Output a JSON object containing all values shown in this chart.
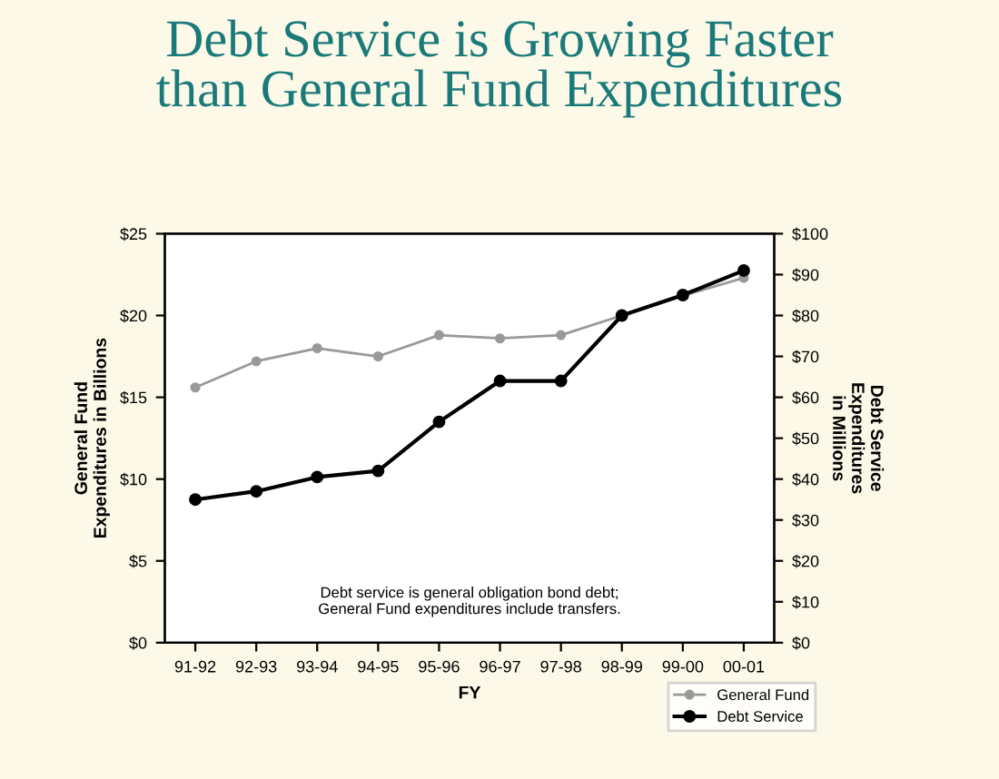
{
  "chart_data": {
    "type": "line",
    "title": "Debt Service is Growing Faster\nthan General Fund Expenditures",
    "categories": [
      "91-92",
      "92-93",
      "93-94",
      "94-95",
      "95-96",
      "96-97",
      "97-98",
      "98-99",
      "99-00",
      "00-01"
    ],
    "xlabel": "FY",
    "ylabel": "General Fund\nExpenditures in Billions",
    "y2label": "Debt Service\nExpenditures\nin Millions",
    "series": [
      {
        "name": "General Fund",
        "color": "#999999",
        "values": [
          15.6,
          17.2,
          18.0,
          17.5,
          18.8,
          18.6,
          18.8,
          20.0,
          21.2,
          22.3
        ]
      },
      {
        "name": "Debt Service",
        "color": "#000000",
        "axis": "y2",
        "values": [
          35,
          37,
          40.5,
          42,
          54,
          64,
          64,
          80,
          85,
          91
        ]
      }
    ],
    "ylim": [
      0,
      25
    ],
    "yticks": [
      {
        "value": 0,
        "label": "$0"
      },
      {
        "value": 5,
        "label": "$5"
      },
      {
        "value": 10,
        "label": "$10"
      },
      {
        "value": 15,
        "label": "$15"
      },
      {
        "value": 20,
        "label": "$20"
      },
      {
        "value": 25,
        "label": "$25"
      }
    ],
    "y2lim": [
      0,
      100
    ],
    "y2ticks": [
      {
        "value": 0,
        "label": "$0"
      },
      {
        "value": 10,
        "label": "$10"
      },
      {
        "value": 20,
        "label": "$20"
      },
      {
        "value": 30,
        "label": "$30"
      },
      {
        "value": 40,
        "label": "$40"
      },
      {
        "value": 50,
        "label": "$50"
      },
      {
        "value": 60,
        "label": "$60"
      },
      {
        "value": 70,
        "label": "$70"
      },
      {
        "value": 80,
        "label": "$80"
      },
      {
        "value": 90,
        "label": "$90"
      },
      {
        "value": 100,
        "label": "$100"
      }
    ],
    "annotations": [
      "Debt service is general obligation bond debt;\nGeneral Fund expenditures include transfers."
    ],
    "marker": "circle",
    "line_style": "solid",
    "legend": "bottom right",
    "grid": false
  }
}
